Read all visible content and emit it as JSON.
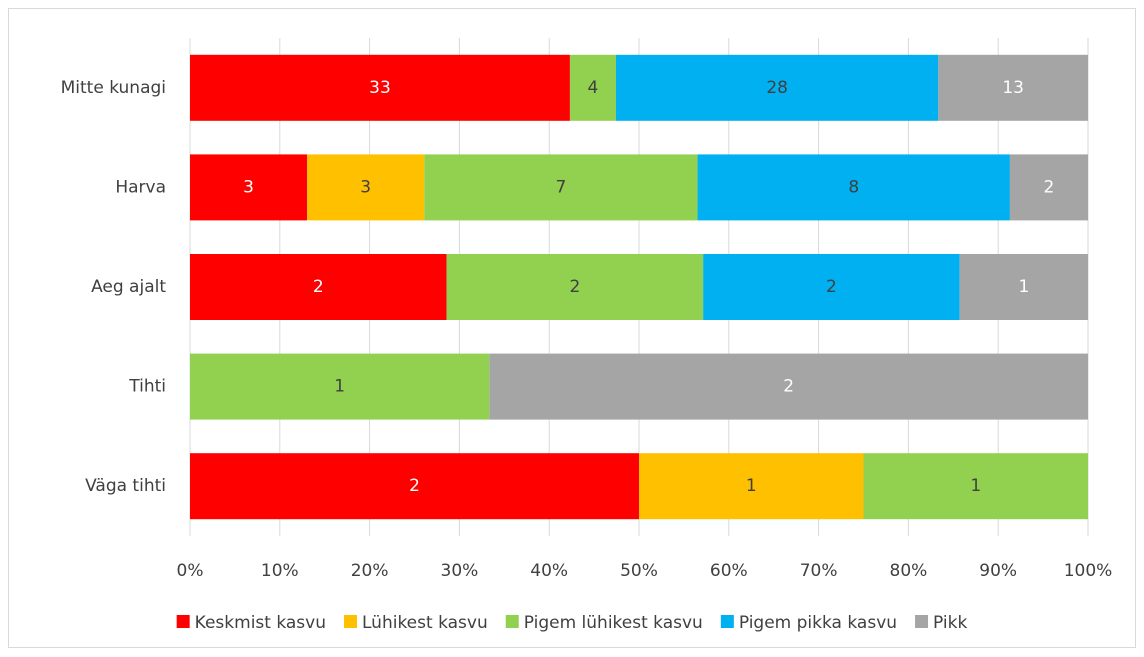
{
  "chart_data": {
    "type": "bar",
    "orientation": "horizontal",
    "stacked": "percent",
    "categories": [
      "Mitte kunagi",
      "Harva",
      "Aeg ajalt",
      "Tihti",
      "Väga tihti"
    ],
    "series": [
      {
        "name": "Keskmist kasvu",
        "color": "#ff0000",
        "label_color": "#ffffff",
        "values": [
          33,
          3,
          2,
          null,
          2
        ]
      },
      {
        "name": "Lühikest kasvu",
        "color": "#ffc000",
        "label_color": "#404040",
        "values": [
          null,
          3,
          null,
          null,
          1
        ]
      },
      {
        "name": "Pigem lühikest kasvu",
        "color": "#92d050",
        "label_color": "#404040",
        "values": [
          4,
          7,
          2,
          1,
          1
        ]
      },
      {
        "name": "Pigem pikka kasvu",
        "color": "#00b0f0",
        "label_color": "#404040",
        "values": [
          28,
          8,
          2,
          null,
          null
        ]
      },
      {
        "name": "Pikk",
        "color": "#a5a5a5",
        "label_color": "#ffffff",
        "values": [
          13,
          2,
          1,
          2,
          null
        ]
      }
    ],
    "xlim": [
      0,
      100
    ],
    "xticks": [
      {
        "value": 0,
        "label": "0%"
      },
      {
        "value": 10,
        "label": "10%"
      },
      {
        "value": 20,
        "label": "20%"
      },
      {
        "value": 30,
        "label": "30%"
      },
      {
        "value": 40,
        "label": "40%"
      },
      {
        "value": 50,
        "label": "50%"
      },
      {
        "value": 60,
        "label": "60%"
      },
      {
        "value": 70,
        "label": "70%"
      },
      {
        "value": 80,
        "label": "80%"
      },
      {
        "value": 90,
        "label": "90%"
      },
      {
        "value": 100,
        "label": "100%"
      }
    ],
    "grid": true,
    "legend": "bottom"
  }
}
